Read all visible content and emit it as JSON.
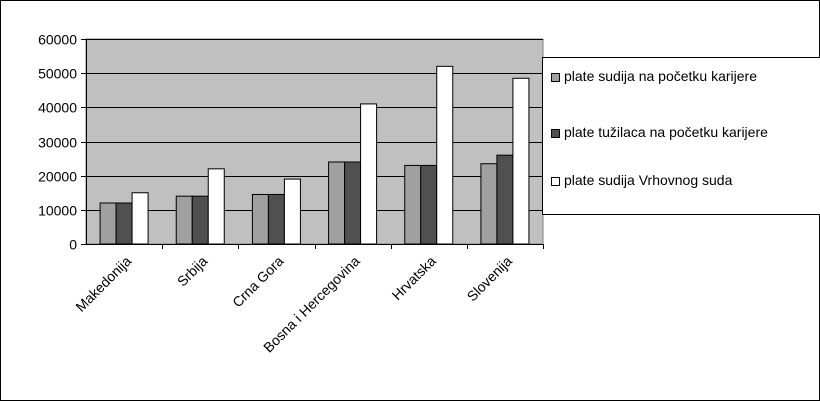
{
  "chart_data": {
    "type": "bar",
    "categories": [
      "Makedonija",
      "Srbija",
      "Crna Gora",
      "Bosna i Hercegovina",
      "Hrvatska",
      "Slovenija"
    ],
    "series": [
      {
        "name": "plate sudija na početku karijere",
        "values": [
          12000,
          14000,
          14500,
          24000,
          23000,
          23500
        ]
      },
      {
        "name": "plate tužilaca na početku karijere",
        "values": [
          12000,
          14000,
          14500,
          24000,
          23000,
          26000
        ]
      },
      {
        "name": "plate sudija Vrhovnog suda",
        "values": [
          15000,
          22000,
          19000,
          41000,
          52000,
          48500
        ]
      }
    ],
    "colors": [
      "#a0a0a0",
      "#505050",
      "#ffffff"
    ],
    "plot_bg": "#c0c0c0",
    "ylim": [
      0,
      60000
    ],
    "yticks": [
      0,
      10000,
      20000,
      30000,
      40000,
      50000,
      60000
    ],
    "grid": true,
    "legend_position": "right",
    "title": "",
    "xlabel": "",
    "ylabel": ""
  }
}
